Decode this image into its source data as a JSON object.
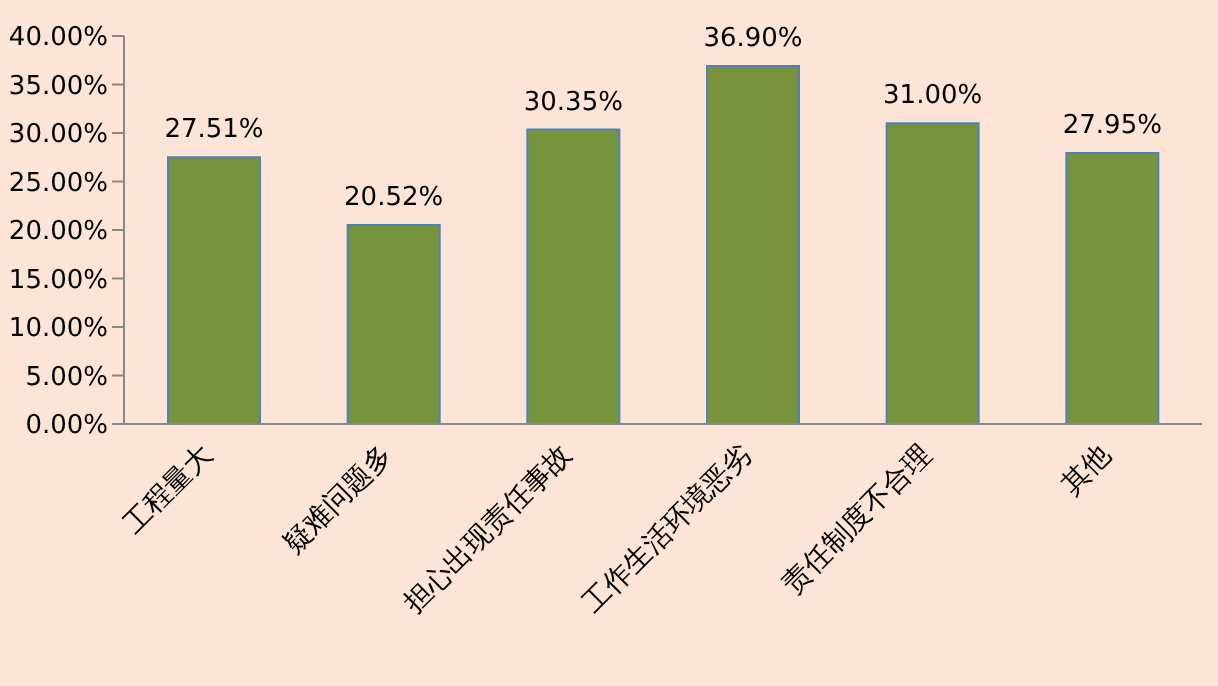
{
  "chart_data": {
    "type": "bar",
    "categories": [
      "工程量大",
      "疑难问题多",
      "担心出现责任事故",
      "工作生活环境恶劣",
      "责任制度不合理",
      "其他"
    ],
    "values": [
      27.51,
      20.52,
      30.35,
      36.9,
      31.0,
      27.95
    ],
    "value_labels": [
      "27.51%",
      "20.52%",
      "30.35%",
      "36.90%",
      "31.00%",
      "27.95%"
    ],
    "color": "#77933c",
    "ylim": [
      0,
      40
    ],
    "yticks": [
      {
        "value": 0,
        "label": "0.00%"
      },
      {
        "value": 5,
        "label": "5.00%"
      },
      {
        "value": 10,
        "label": "10.00%"
      },
      {
        "value": 15,
        "label": "15.00%"
      },
      {
        "value": 20,
        "label": "20.00%"
      },
      {
        "value": 25,
        "label": "25.00%"
      },
      {
        "value": 30,
        "label": "30.00%"
      },
      {
        "value": 35,
        "label": "35.00%"
      },
      {
        "value": 40,
        "label": "40.00%"
      }
    ],
    "grid": false,
    "legend": false
  }
}
